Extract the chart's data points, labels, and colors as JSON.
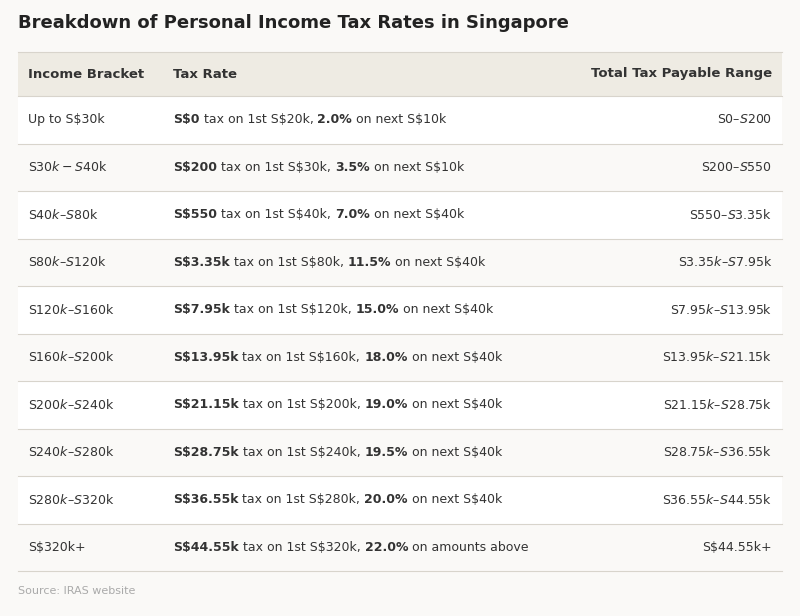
{
  "title": "Breakdown of Personal Income Tax Rates in Singapore",
  "source": "Source: IRAS website",
  "background_color": "#faf9f7",
  "header_bg_color": "#eeebe3",
  "row_bg_even": "#ffffff",
  "row_bg_odd": "#faf9f7",
  "header_text_color": "#333333",
  "cell_text_color": "#333333",
  "title_color": "#222222",
  "source_color": "#aaaaaa",
  "col_headers": [
    "Income Bracket",
    "Tax Rate",
    "Total Tax Payable Range"
  ],
  "rows": [
    {
      "bracket": "Up to S$30k",
      "tax_rate_bold": "S$0",
      "tax_rate_mid": " tax on 1st S$20k, ",
      "tax_rate_pct": "2.0%",
      "tax_rate_end": " on next S$10k",
      "total_range": "S$0–S$200"
    },
    {
      "bracket": "S$30k-S$40k",
      "tax_rate_bold": "S$200",
      "tax_rate_mid": " tax on 1st S$30k, ",
      "tax_rate_pct": "3.5%",
      "tax_rate_end": " on next S$10k",
      "total_range": "S$200–S$550"
    },
    {
      "bracket": "S$40k–S$80k",
      "tax_rate_bold": "S$550",
      "tax_rate_mid": " tax on 1st S$40k, ",
      "tax_rate_pct": "7.0%",
      "tax_rate_end": " on next S$40k",
      "total_range": "S$550–S$3.35k"
    },
    {
      "bracket": "S$80k–S$120k",
      "tax_rate_bold": "S$3.35k",
      "tax_rate_mid": " tax on 1st S$80k, ",
      "tax_rate_pct": "11.5%",
      "tax_rate_end": " on next S$40k",
      "total_range": "S$3.35k–S$7.95k"
    },
    {
      "bracket": "S$120k–S$160k",
      "tax_rate_bold": "S$7.95k",
      "tax_rate_mid": " tax on 1st S$120k, ",
      "tax_rate_pct": "15.0%",
      "tax_rate_end": " on next S$40k",
      "total_range": "S$7.95k–S$13.95k"
    },
    {
      "bracket": "S$160k–S$200k",
      "tax_rate_bold": "S$13.95k",
      "tax_rate_mid": " tax on 1st S$160k, ",
      "tax_rate_pct": "18.0%",
      "tax_rate_end": " on next S$40k",
      "total_range": "S$13.95k–S$21.15k"
    },
    {
      "bracket": "S$200k–S$240k",
      "tax_rate_bold": "S$21.15k",
      "tax_rate_mid": " tax on 1st S$200k, ",
      "tax_rate_pct": "19.0%",
      "tax_rate_end": " on next S$40k",
      "total_range": "S$21.15k–S$28.75k"
    },
    {
      "bracket": "S$240k–S$280k",
      "tax_rate_bold": "S$28.75k",
      "tax_rate_mid": " tax on 1st S$240k, ",
      "tax_rate_pct": "19.5%",
      "tax_rate_end": " on next S$40k",
      "total_range": "S$28.75k–S$36.55k"
    },
    {
      "bracket": "S$280k–S$320k",
      "tax_rate_bold": "S$36.55k",
      "tax_rate_mid": " tax on 1st S$280k, ",
      "tax_rate_pct": "20.0%",
      "tax_rate_end": " on next S$40k",
      "total_range": "S$36.55k–S$44.55k"
    },
    {
      "bracket": "S$320k+",
      "tax_rate_bold": "S$44.55k",
      "tax_rate_mid": " tax on 1st S$320k, ",
      "tax_rate_pct": "22.0%",
      "tax_rate_end": " on amounts above",
      "total_range": "S$44.55k+"
    }
  ]
}
